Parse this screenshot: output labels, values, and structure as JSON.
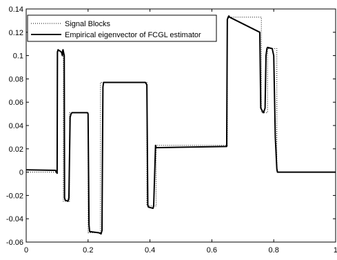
{
  "chart_data": {
    "type": "line",
    "title": "",
    "xlabel": "",
    "ylabel": "",
    "xlim": [
      0,
      1
    ],
    "ylim": [
      -0.06,
      0.14
    ],
    "x_ticks": [
      0,
      0.2,
      0.4,
      0.6,
      0.8,
      1
    ],
    "x_tick_labels": [
      "0",
      "0.2",
      "0.4",
      "0.6",
      "0.8",
      "1"
    ],
    "y_ticks": [
      -0.06,
      -0.04,
      -0.02,
      0,
      0.02,
      0.04,
      0.06,
      0.08,
      0.1,
      0.12,
      0.14
    ],
    "y_tick_labels": [
      "-0.06",
      "-0.04",
      "-0.02",
      "0",
      "0.02",
      "0.04",
      "0.06",
      "0.08",
      "0.1",
      "0.12",
      "0.14"
    ],
    "grid": false,
    "legend_position": "top-left",
    "series": [
      {
        "name": "Signal Blocks",
        "style": "dotted",
        "color": "#000000",
        "x": [
          0,
          0.1,
          0.1,
          0.12,
          0.12,
          0.14,
          0.14,
          0.2,
          0.2,
          0.24,
          0.24,
          0.39,
          0.39,
          0.42,
          0.42,
          0.65,
          0.65,
          0.76,
          0.76,
          0.78,
          0.78,
          0.81,
          0.81,
          1
        ],
        "y": [
          0.0,
          0.0,
          0.104,
          0.104,
          -0.025,
          -0.025,
          0.051,
          0.051,
          -0.052,
          -0.052,
          0.077,
          0.077,
          -0.029,
          -0.029,
          0.023,
          0.023,
          0.133,
          0.133,
          0.051,
          0.051,
          0.106,
          0.106,
          0.0,
          0.0
        ]
      },
      {
        "name": "Empirical eigenvector of FCGL estimator",
        "style": "solid",
        "color": "#000000",
        "x": [
          0,
          0.095,
          0.1,
          0.101,
          0.103,
          0.114,
          0.117,
          0.118,
          0.119,
          0.123,
          0.124,
          0.126,
          0.135,
          0.138,
          0.142,
          0.145,
          0.148,
          0.198,
          0.2,
          0.203,
          0.205,
          0.235,
          0.242,
          0.245,
          0.248,
          0.25,
          0.385,
          0.39,
          0.393,
          0.395,
          0.41,
          0.412,
          0.418,
          0.42,
          0.648,
          0.65,
          0.655,
          0.657,
          0.755,
          0.758,
          0.762,
          0.767,
          0.772,
          0.775,
          0.778,
          0.78,
          0.795,
          0.8,
          0.805,
          0.81,
          0.812,
          1
        ],
        "y": [
          0.002,
          0.0015,
          -0.001,
          0.103,
          0.105,
          0.103,
          0.1,
          0.104,
          0.105,
          0.1,
          -0.022,
          -0.024,
          -0.025,
          -0.022,
          0.047,
          0.05,
          0.051,
          0.051,
          0.05,
          -0.045,
          -0.051,
          -0.052,
          -0.053,
          -0.05,
          0.073,
          0.077,
          0.077,
          0.075,
          -0.028,
          -0.03,
          -0.031,
          -0.029,
          0.023,
          0.021,
          0.022,
          0.131,
          0.134,
          0.133,
          0.12,
          0.055,
          0.053,
          0.051,
          0.055,
          0.1,
          0.106,
          0.107,
          0.106,
          0.1,
          0.03,
          0.003,
          0.0,
          0.0
        ]
      }
    ]
  }
}
